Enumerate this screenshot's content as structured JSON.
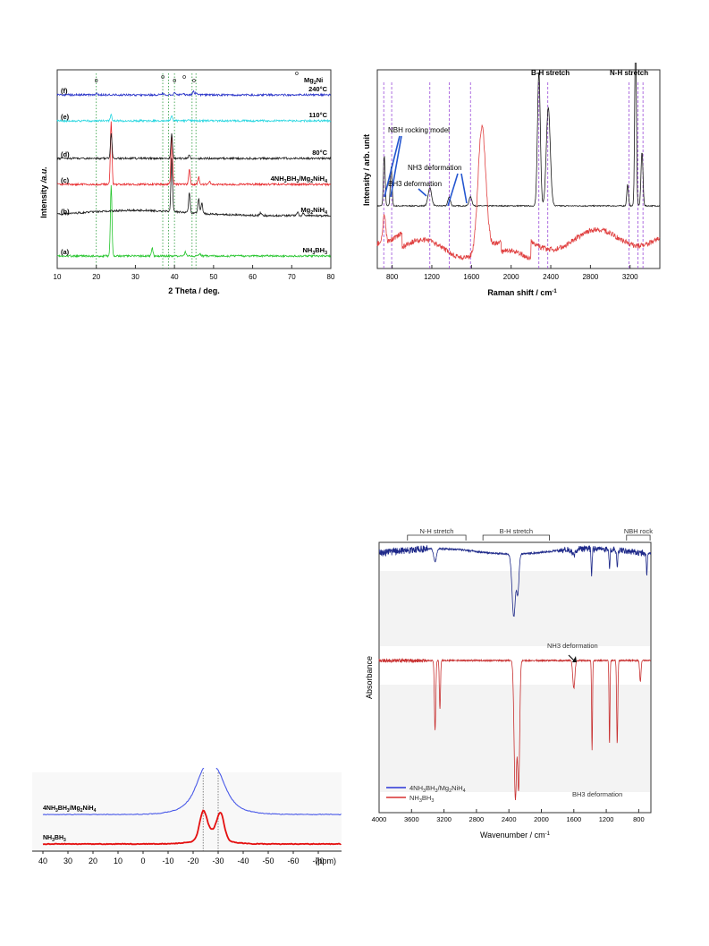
{
  "chart_data": [
    {
      "id": "xrd",
      "type": "line",
      "xlabel": "2 Theta / deg.",
      "ylabel_main": "Intensity",
      "ylabel_unit": "/a.u.",
      "xlim": [
        10,
        80
      ],
      "x_ticks": [
        10,
        20,
        30,
        40,
        50,
        60,
        70,
        80
      ],
      "marker_symbol": "o",
      "marker_label": "Mg2Ni",
      "marker_positions": [
        20,
        37,
        40,
        42.5,
        45
      ],
      "dotted_lines": [
        20,
        37,
        38.5,
        40,
        44.5,
        45.5
      ],
      "series": [
        {
          "tag": "(a)",
          "label": "NH3BH3",
          "color": "#22c42a",
          "peaks": [
            [
              23.8,
              1.0
            ],
            [
              34.3,
              0.12
            ],
            [
              42.8,
              0.06
            ],
            [
              46.5,
              0.04
            ]
          ]
        },
        {
          "tag": "(b)",
          "label": "Mg2NiH4",
          "color": "#1a1a1a",
          "peaks": [
            [
              39.3,
              1.0
            ],
            [
              43.8,
              0.38
            ],
            [
              46.2,
              0.28
            ],
            [
              47,
              0.2
            ],
            [
              62,
              0.05
            ],
            [
              71.5,
              0.08
            ],
            [
              73,
              0.05
            ]
          ]
        },
        {
          "tag": "(c)",
          "label": "4NH3BH3/Mg2NiH4",
          "color": "#e8262a",
          "peaks": [
            [
              23.8,
              1.0
            ],
            [
              39.3,
              0.8
            ],
            [
              43.8,
              0.25
            ],
            [
              46.2,
              0.12
            ],
            [
              49,
              0.05
            ]
          ]
        },
        {
          "tag": "(d)",
          "label": "80°C",
          "color": "#1a1a1a",
          "peaks": [
            [
              23.8,
              0.7
            ],
            [
              39.3,
              0.7
            ],
            [
              43.8,
              0.1
            ]
          ]
        },
        {
          "tag": "(e)",
          "label": "110°C",
          "color": "#26d6e0",
          "peaks": [
            [
              23.8,
              0.35
            ],
            [
              39.3,
              0.3
            ],
            [
              43.8,
              0.08
            ]
          ]
        },
        {
          "tag": "(f)",
          "label": "240°C",
          "color": "#2630c8",
          "peaks": [
            [
              20,
              0.1
            ],
            [
              37,
              0.08
            ],
            [
              40,
              0.12
            ],
            [
              42.5,
              0.08
            ],
            [
              44.8,
              0.25
            ],
            [
              45.5,
              0.12
            ]
          ]
        }
      ]
    },
    {
      "id": "raman",
      "type": "line",
      "xlabel": "Raman shift / cm",
      "xlabel_sup": "-1",
      "ylabel": "Intensity / arb. unit",
      "xlim": [
        650,
        3500
      ],
      "x_ticks": [
        800,
        1200,
        1600,
        2000,
        2400,
        2800,
        3200
      ],
      "dashed_lines": [
        715,
        795,
        1180,
        1375,
        1590,
        2280,
        2370,
        3190,
        3280,
        3330
      ],
      "annotations": [
        {
          "text": "B-H stretch",
          "x": 2320
        },
        {
          "text": "N-H stretch",
          "x": 3240
        },
        {
          "text": "NBH rocking model"
        },
        {
          "text": "NH3 deformation"
        },
        {
          "text": "BH3 deformation"
        }
      ],
      "series": [
        {
          "color": "#1a1a1a",
          "baseline": 0.3,
          "peaks": [
            [
              720,
              0.28,
              12
            ],
            [
              790,
              0.22,
              12
            ],
            [
              1180,
              0.1,
              25
            ],
            [
              1375,
              0.05,
              18
            ],
            [
              1590,
              0.05,
              20
            ],
            [
              2280,
              0.75,
              20
            ],
            [
              2375,
              0.55,
              28
            ],
            [
              3175,
              0.12,
              12
            ],
            [
              3255,
              0.95,
              12
            ],
            [
              3320,
              0.3,
              14
            ]
          ]
        },
        {
          "color": "#e04040",
          "baseline": 0.06,
          "peaks": [
            [
              720,
              0.15,
              20
            ],
            [
              1705,
              0.7,
              55
            ]
          ]
        }
      ]
    },
    {
      "id": "nmr",
      "type": "line",
      "xlabel": "(ppm)",
      "x_ticks": [
        40,
        30,
        20,
        10,
        0,
        -10,
        -20,
        -30,
        -40,
        -50,
        -60,
        -70
      ],
      "xlim": [
        40,
        -80
      ],
      "dotted_lines": [
        -24,
        -30
      ],
      "series": [
        {
          "label": "4NH3BH3/Mg2NiH4",
          "color": "#4a5ae8",
          "shape": "broad",
          "center": -27,
          "width": 7,
          "height": 1.0
        },
        {
          "label": "NH3BH3",
          "color": "#e41010",
          "shape": "doublet",
          "centers": [
            -24,
            -31
          ],
          "width": 2,
          "height": 1.0
        }
      ]
    },
    {
      "id": "ftir",
      "type": "line",
      "xlabel": "Wavenumber / cm",
      "xlabel_sup": "-1",
      "ylabel": "Absorbance",
      "xlim": [
        4000,
        650
      ],
      "x_ticks": [
        4000,
        3600,
        3200,
        2800,
        2400,
        2000,
        1600,
        1200,
        800
      ],
      "brackets": [
        {
          "text": "N-H stretch",
          "from": 3650,
          "to": 2930
        },
        {
          "text": "B-H stretch",
          "from": 2720,
          "to": 1900
        },
        {
          "text": "NBH rock",
          "from": 950,
          "to": 660
        }
      ],
      "annotations": [
        {
          "text": "NH3 deformation"
        },
        {
          "text": "BH3 deformation"
        }
      ],
      "series": [
        {
          "label": "4NH3BH3/Mg2NiH4",
          "color": "#1f2a8a",
          "dips": [
            [
              3310,
              0.2,
              25
            ],
            [
              2340,
              1.0,
              30
            ],
            [
              2290,
              0.6,
              20
            ],
            [
              1600,
              0.08,
              40
            ],
            [
              1380,
              0.45,
              8
            ],
            [
              1160,
              0.3,
              8
            ],
            [
              1065,
              0.25,
              10
            ],
            [
              700,
              0.35,
              8
            ]
          ]
        },
        {
          "label": "NH3BH3",
          "color": "#c83030",
          "dips": [
            [
              3310,
              0.5,
              12
            ],
            [
              3250,
              0.35,
              10
            ],
            [
              2320,
              1.0,
              22
            ],
            [
              2280,
              0.9,
              18
            ],
            [
              1600,
              0.2,
              18
            ],
            [
              1375,
              0.65,
              8
            ],
            [
              1160,
              0.6,
              8
            ],
            [
              1065,
              0.6,
              10
            ],
            [
              780,
              0.15,
              12
            ]
          ]
        }
      ]
    }
  ]
}
